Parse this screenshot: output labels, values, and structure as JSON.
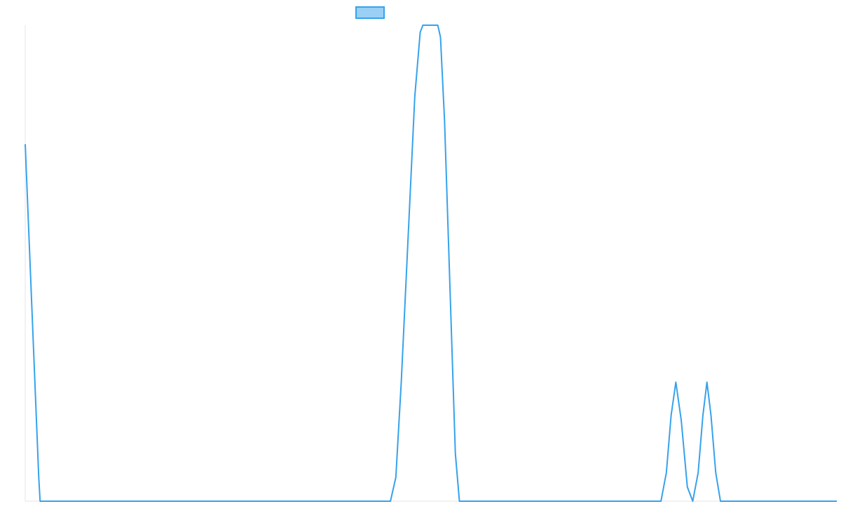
{
  "chart_data": {
    "type": "line",
    "title": "",
    "xlabel": "",
    "ylabel": "",
    "legend": {
      "position": "top-center",
      "label": ""
    },
    "grid": false,
    "xlim": [
      0,
      1200
    ],
    "ylim": [
      0,
      1
    ],
    "series": [
      {
        "name": "",
        "color": "#36a2eb",
        "fill": "#9ad0f5",
        "points": [
          [
            0,
            0.75
          ],
          [
            10,
            0.4
          ],
          [
            20,
            0.05
          ],
          [
            22,
            0.0
          ],
          [
            540,
            0.0
          ],
          [
            548,
            0.05
          ],
          [
            556,
            0.25
          ],
          [
            566,
            0.55
          ],
          [
            576,
            0.85
          ],
          [
            584,
            0.985
          ],
          [
            588,
            1.0
          ],
          [
            610,
            1.0
          ],
          [
            614,
            0.975
          ],
          [
            620,
            0.8
          ],
          [
            628,
            0.45
          ],
          [
            636,
            0.1
          ],
          [
            642,
            0.0
          ],
          [
            940,
            0.0
          ],
          [
            948,
            0.06
          ],
          [
            955,
            0.18
          ],
          [
            962,
            0.25
          ],
          [
            970,
            0.17
          ],
          [
            979,
            0.03
          ],
          [
            987,
            0.0
          ],
          [
            995,
            0.06
          ],
          [
            1002,
            0.18
          ],
          [
            1008,
            0.25
          ],
          [
            1014,
            0.18
          ],
          [
            1021,
            0.06
          ],
          [
            1028,
            0.0
          ],
          [
            1200,
            0.0
          ]
        ]
      }
    ]
  }
}
